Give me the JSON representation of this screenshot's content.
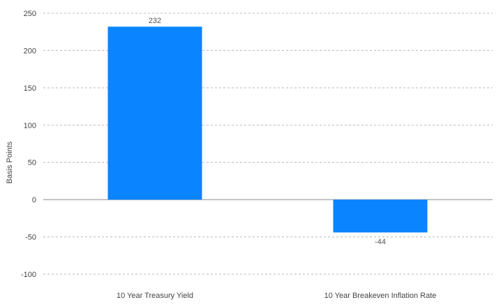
{
  "chart_data": {
    "type": "bar",
    "categories": [
      "10 Year Treasury Yield",
      "10 Year Breakeven Inflation Rate"
    ],
    "values": [
      232,
      -44
    ],
    "data_labels": [
      "232",
      "-44"
    ],
    "ylabel": "Basis Points",
    "ylim": [
      -100,
      250
    ],
    "yticks": [
      250,
      200,
      150,
      100,
      50,
      0,
      -50,
      -100
    ],
    "grid": true,
    "bar_color": "#0a84ff"
  }
}
